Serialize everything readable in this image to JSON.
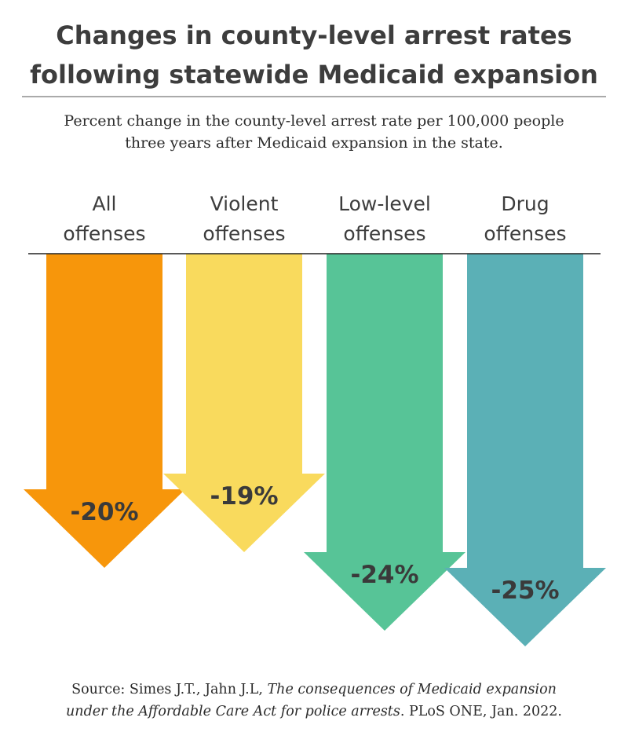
{
  "chart_data": {
    "type": "bar",
    "orientation": "downward-arrows",
    "title_lines": [
      "Changes in county-level arrest rates",
      "following statewide Medicaid expansion"
    ],
    "subtitle_lines": [
      "Percent change in the county-level arrest rate per 100,000 people",
      "three years after Medicaid expansion in the state."
    ],
    "unit": "%",
    "bars": [
      {
        "label_lines": [
          "All",
          "offenses"
        ],
        "value": -20,
        "value_label": "-20%",
        "color": "#F7960B"
      },
      {
        "label_lines": [
          "Violent",
          "offenses"
        ],
        "value": -19,
        "value_label": "-19%",
        "color": "#F9DA5D"
      },
      {
        "label_lines": [
          "Low-level",
          "offenses"
        ],
        "value": -24,
        "value_label": "-24%",
        "color": "#57C497"
      },
      {
        "label_lines": [
          "Drug",
          "offenses"
        ],
        "value": -25,
        "value_label": "-25%",
        "color": "#5BB0B6"
      }
    ]
  },
  "source": {
    "prefix": "Source: Simes J.T., Jahn J.L, ",
    "italic_1": "The consequences of Medicaid expansion",
    "italic_2": "under the Affordable Care Act for police arrests",
    "suffix": ". PLoS ONE, Jan. 2022."
  }
}
